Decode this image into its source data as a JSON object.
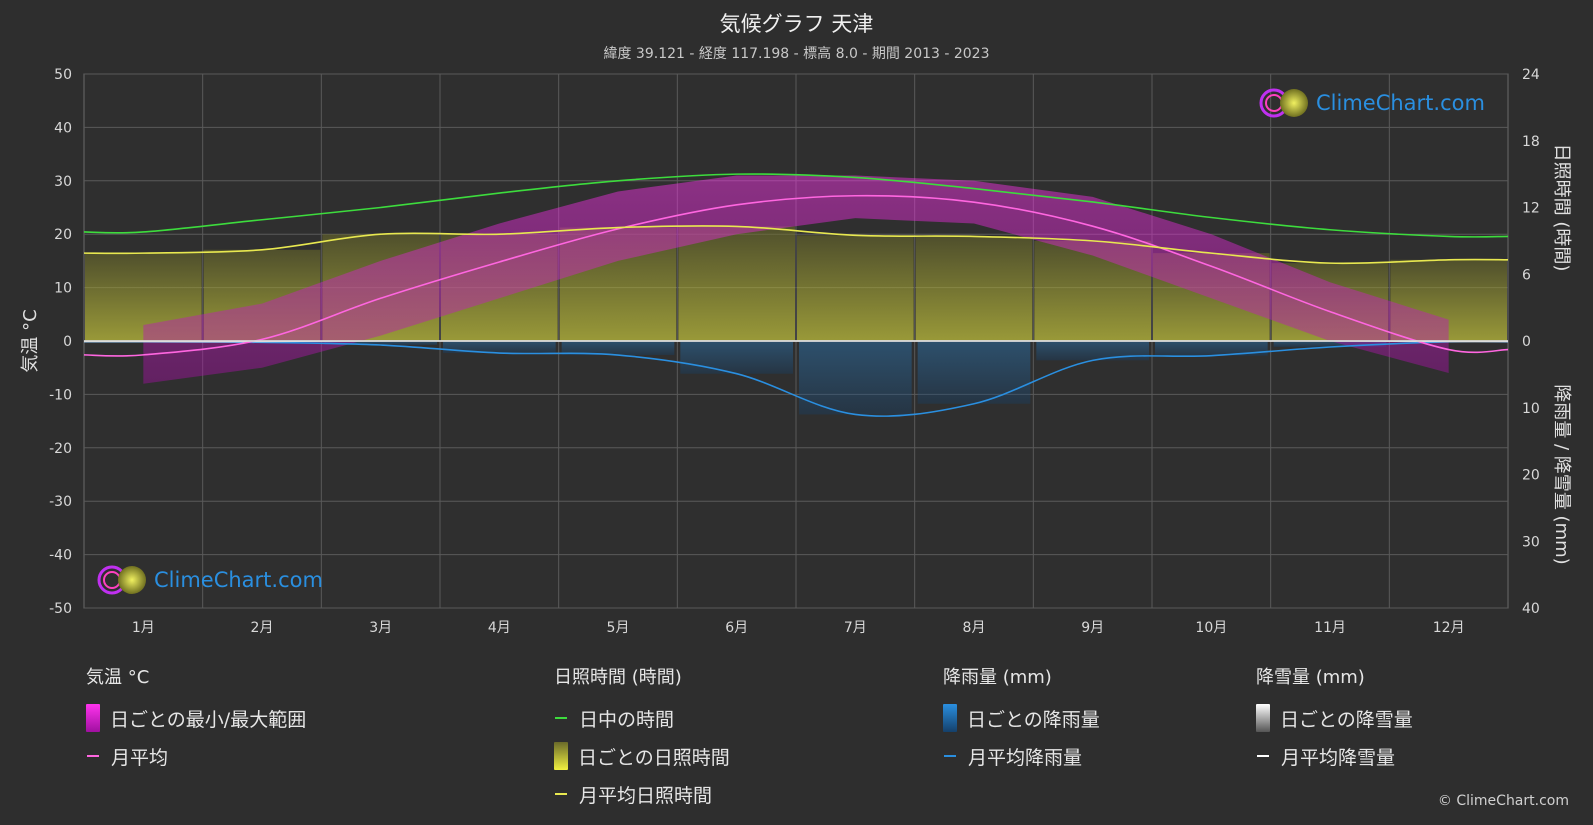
{
  "title": "気候グラフ 天津",
  "subtitle": "緯度 39.121 - 経度 117.198 - 標高 8.0 - 期間 2013 - 2023",
  "logo_text": "ClimeChart.com",
  "copyright": "© ClimeChart.com",
  "colors": {
    "background": "#2e2e2e",
    "daylight": "#3ddc3d",
    "sunshine": "#e8e850",
    "temp_avg": "#ff66e0",
    "temp_range": "#e020e0",
    "rain": "#2a8fe0",
    "snow": "#ffffff",
    "grid": "#5a5a5a"
  },
  "chart_data": {
    "type": "line",
    "categories": [
      "1月",
      "2月",
      "3月",
      "4月",
      "5月",
      "6月",
      "7月",
      "8月",
      "9月",
      "10月",
      "11月",
      "12月"
    ],
    "axes": {
      "left": {
        "label": "気温 °C",
        "ticks": [
          "50",
          "40",
          "30",
          "20",
          "10",
          "0",
          "-10",
          "-20",
          "-30",
          "-40",
          "-50"
        ],
        "range": [
          -50,
          50
        ]
      },
      "right_top": {
        "label": "日照時間 (時間)",
        "ticks": [
          "24",
          "18",
          "12",
          "6",
          "0"
        ],
        "range": [
          0,
          24
        ]
      },
      "right_bottom": {
        "label": "降雨量 / 降雪量 (mm)",
        "ticks": [
          "10",
          "20",
          "30",
          "40"
        ],
        "range": [
          0,
          40
        ]
      }
    },
    "series": {
      "daylight_hours": [
        9.8,
        10.9,
        12.0,
        13.3,
        14.4,
        15.0,
        14.7,
        13.7,
        12.5,
        11.1,
        10.0,
        9.4
      ],
      "sunshine_hours": [
        7.9,
        8.2,
        9.6,
        9.6,
        10.2,
        10.3,
        9.5,
        9.4,
        9.0,
        7.9,
        7.0,
        7.3
      ],
      "temp_avg": [
        -2.6,
        0.3,
        8.0,
        14.8,
        21.0,
        25.5,
        27.2,
        26.0,
        21.5,
        14.0,
        5.5,
        -1.6
      ],
      "temp_max": [
        3,
        7,
        15,
        22,
        28,
        31,
        31,
        30,
        27,
        20,
        11,
        4
      ],
      "temp_min": [
        -8,
        -5,
        1,
        8,
        15,
        20,
        23,
        22,
        16,
        8,
        0,
        -6
      ],
      "rain_avg_mm": [
        0.1,
        0.2,
        0.6,
        1.8,
        2.1,
        4.9,
        11.0,
        9.4,
        2.9,
        2.2,
        0.9,
        0.1
      ],
      "snow_avg_mm": [
        0.1,
        0.1,
        0.0,
        0.0,
        0.0,
        0.0,
        0.0,
        0.0,
        0.0,
        0.0,
        0.0,
        0.1
      ]
    }
  },
  "legend": {
    "temperature": {
      "header": "気温 °C",
      "range_label": "日ごとの最小/最大範囲",
      "avg_label": "月平均"
    },
    "sunshine": {
      "header": "日照時間 (時間)",
      "daylight_label": "日中の時間",
      "daily_label": "日ごとの日照時間",
      "avg_label": "月平均日照時間"
    },
    "rain": {
      "header": "降雨量 (mm)",
      "daily_label": "日ごとの降雨量",
      "avg_label": "月平均降雨量"
    },
    "snow": {
      "header": "降雪量 (mm)",
      "daily_label": "日ごとの降雪量",
      "avg_label": "月平均降雪量"
    }
  }
}
